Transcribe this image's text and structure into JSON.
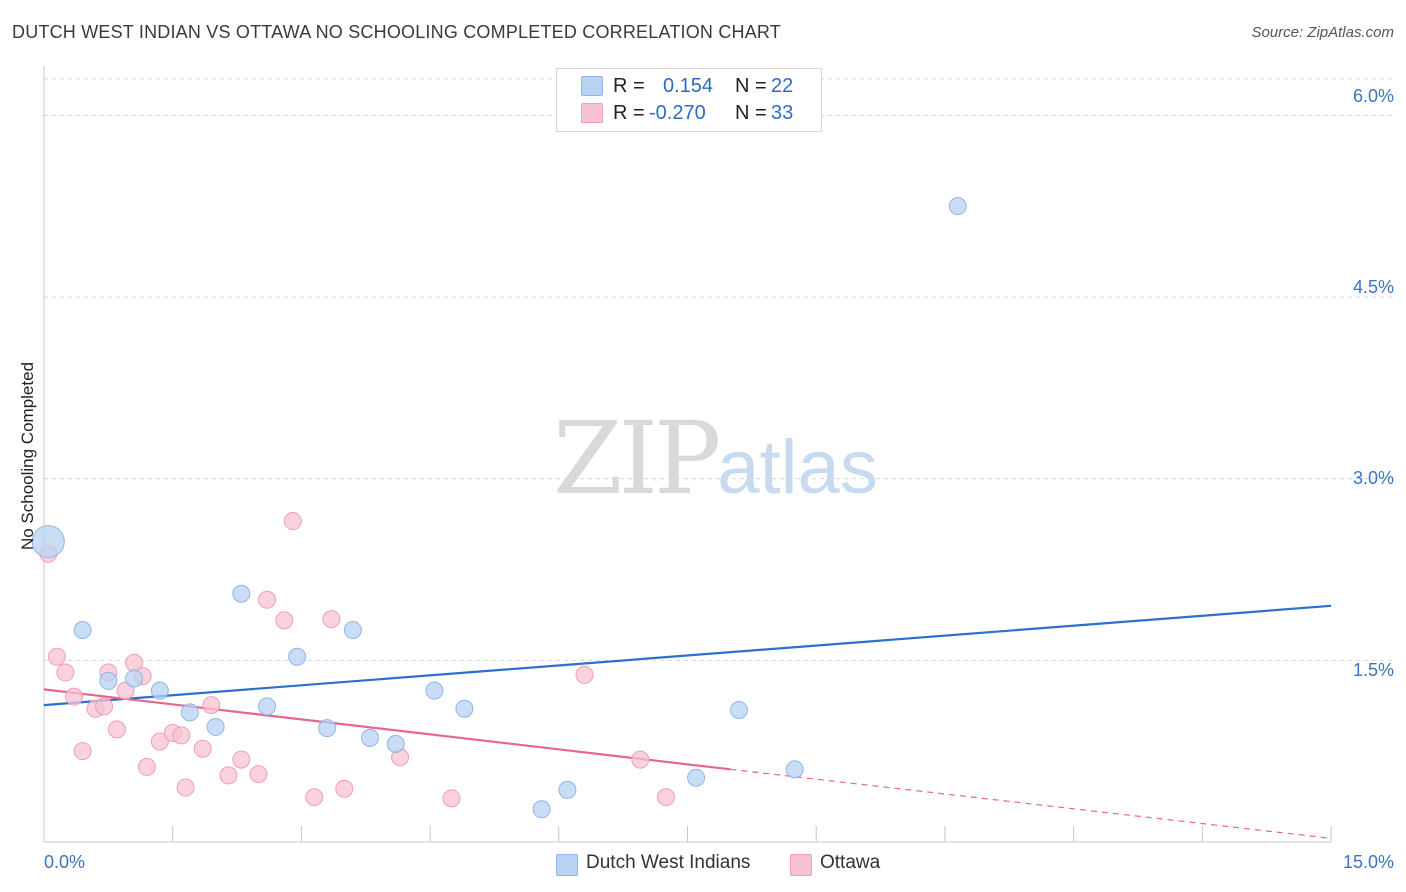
{
  "title": "DUTCH WEST INDIAN VS OTTAWA NO SCHOOLING COMPLETED CORRELATION CHART",
  "source": "Source: ZipAtlas.com",
  "watermark": {
    "zip": "ZIP",
    "atlas": "atlas"
  },
  "legend_top": {
    "rows": [
      {
        "r_label": "R =",
        "r_value": "0.154",
        "n_label": "N =",
        "n_value": "22"
      },
      {
        "r_label": "R =",
        "r_value": "-0.270",
        "n_label": "N =",
        "n_value": "33"
      }
    ]
  },
  "legend_bottom": [
    "Dutch West Indians",
    "Ottawa"
  ],
  "colors": {
    "dutch_fill": "#b8d2f4",
    "dutch_stroke": "#8fb6e6",
    "dutch_line": "#2e6fcc",
    "ottawa_fill": "#f7c3d3",
    "ottawa_stroke": "#ef9fb8",
    "ottawa_line": "#e8658f",
    "tick_text": "#3b73c5",
    "grid": "#d8d8d8"
  },
  "chart_data": {
    "type": "scatter",
    "title": "DUTCH WEST INDIAN VS OTTAWA NO SCHOOLING COMPLETED CORRELATION CHART",
    "xlabel": "",
    "ylabel": "No Schooling Completed",
    "xlim": [
      0,
      15
    ],
    "ylim": [
      0,
      6.3
    ],
    "x_tick_labels": [
      "0.0%",
      "15.0%"
    ],
    "y_ticks": [
      1.5,
      3.0,
      4.5,
      6.0
    ],
    "y_tick_labels": [
      "1.5%",
      "3.0%",
      "4.5%",
      "6.0%"
    ],
    "grid": true,
    "legend_placement": "bottom-center",
    "series": [
      {
        "name": "Dutch West Indians",
        "r": 0.154,
        "n": 22,
        "points": [
          [
            0.05,
            2.48
          ],
          [
            0.45,
            1.75
          ],
          [
            0.75,
            1.33
          ],
          [
            1.05,
            1.35
          ],
          [
            1.35,
            1.25
          ],
          [
            1.7,
            1.07
          ],
          [
            2.0,
            0.95
          ],
          [
            2.3,
            2.05
          ],
          [
            2.6,
            1.12
          ],
          [
            2.95,
            1.53
          ],
          [
            3.3,
            0.94
          ],
          [
            3.6,
            1.75
          ],
          [
            3.8,
            0.86
          ],
          [
            4.1,
            0.81
          ],
          [
            4.55,
            1.25
          ],
          [
            4.9,
            1.1
          ],
          [
            5.8,
            0.27
          ],
          [
            6.1,
            0.43
          ],
          [
            7.6,
            0.53
          ],
          [
            8.1,
            1.09
          ],
          [
            8.75,
            0.6
          ],
          [
            10.65,
            5.25
          ]
        ],
        "trend": {
          "x": [
            0,
            15
          ],
          "y": [
            1.13,
            1.95
          ]
        }
      },
      {
        "name": "Ottawa",
        "r": -0.27,
        "n": 33,
        "points": [
          [
            0.05,
            2.38
          ],
          [
            0.15,
            1.53
          ],
          [
            0.25,
            1.4
          ],
          [
            0.35,
            1.2
          ],
          [
            0.45,
            0.75
          ],
          [
            0.6,
            1.1
          ],
          [
            0.7,
            1.12
          ],
          [
            0.75,
            1.4
          ],
          [
            0.85,
            0.93
          ],
          [
            0.95,
            1.25
          ],
          [
            1.05,
            1.48
          ],
          [
            1.15,
            1.37
          ],
          [
            1.2,
            0.62
          ],
          [
            1.35,
            0.83
          ],
          [
            1.5,
            0.9
          ],
          [
            1.6,
            0.88
          ],
          [
            1.65,
            0.45
          ],
          [
            1.85,
            0.77
          ],
          [
            1.95,
            1.13
          ],
          [
            2.15,
            0.55
          ],
          [
            2.3,
            0.68
          ],
          [
            2.5,
            0.56
          ],
          [
            2.6,
            2.0
          ],
          [
            2.8,
            1.83
          ],
          [
            2.9,
            2.65
          ],
          [
            3.15,
            0.37
          ],
          [
            3.35,
            1.84
          ],
          [
            3.5,
            0.44
          ],
          [
            4.15,
            0.7
          ],
          [
            4.75,
            0.36
          ],
          [
            6.3,
            1.38
          ],
          [
            6.95,
            0.68
          ],
          [
            7.25,
            0.37
          ]
        ],
        "trend": {
          "x": [
            0,
            8.0
          ],
          "y": [
            1.26,
            0.6
          ]
        },
        "trend_extension": {
          "x": [
            8.0,
            15
          ],
          "y": [
            0.6,
            0.03
          ]
        }
      }
    ]
  }
}
